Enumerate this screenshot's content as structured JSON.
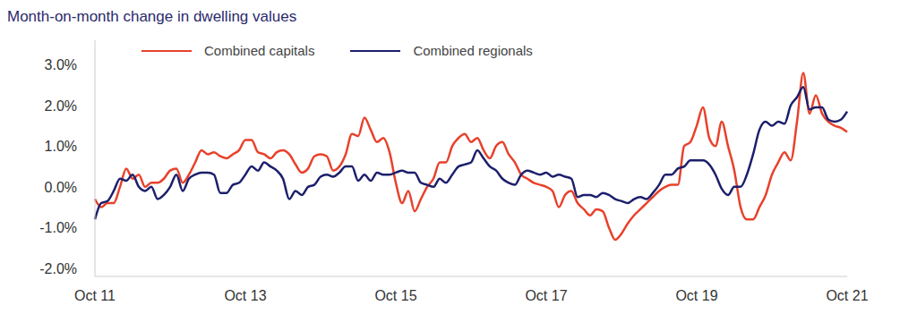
{
  "chart_data": {
    "type": "line",
    "title": "Month-on-month change in dwelling values",
    "categories": [
      "Oct 11",
      null,
      null,
      null,
      null,
      null,
      null,
      null,
      null,
      null,
      null,
      null,
      null,
      null,
      null,
      null,
      null,
      null,
      null,
      null,
      null,
      null,
      null,
      null,
      "Oct 13",
      null,
      null,
      null,
      null,
      null,
      null,
      null,
      null,
      null,
      null,
      null,
      null,
      null,
      null,
      null,
      null,
      null,
      null,
      null,
      null,
      null,
      null,
      null,
      "Oct 15",
      null,
      null,
      null,
      null,
      null,
      null,
      null,
      null,
      null,
      null,
      null,
      null,
      null,
      null,
      null,
      null,
      null,
      null,
      null,
      null,
      null,
      null,
      null,
      "Oct 17",
      null,
      null,
      null,
      null,
      null,
      null,
      null,
      null,
      null,
      null,
      null,
      null,
      null,
      null,
      null,
      null,
      null,
      null,
      null,
      null,
      null,
      null,
      null,
      "Oct 19",
      null,
      null,
      null,
      null,
      null,
      null,
      null,
      null,
      null,
      null,
      null,
      null,
      null,
      null,
      null,
      null,
      null,
      null,
      null,
      null,
      null,
      null,
      null,
      "Oct 21"
    ],
    "series": [
      {
        "name": "Combined capitals",
        "color": "#e8412b",
        "values": [
          -0.3,
          -0.5,
          -0.4,
          -0.4,
          0.0,
          0.45,
          0.2,
          0.3,
          0.0,
          0.1,
          0.1,
          0.2,
          0.4,
          0.45,
          0.1,
          0.3,
          0.6,
          0.9,
          0.8,
          0.85,
          0.75,
          0.7,
          0.8,
          0.9,
          1.15,
          1.15,
          0.85,
          0.8,
          0.7,
          0.85,
          0.9,
          0.8,
          0.55,
          0.35,
          0.45,
          0.75,
          0.8,
          0.75,
          0.4,
          0.5,
          0.8,
          1.3,
          1.25,
          1.7,
          1.4,
          1.1,
          1.2,
          0.85,
          0.1,
          -0.4,
          -0.1,
          -0.6,
          -0.3,
          0.0,
          0.2,
          0.6,
          0.6,
          1.0,
          1.2,
          1.3,
          1.1,
          1.2,
          0.9,
          0.7,
          1.0,
          1.1,
          0.8,
          0.6,
          0.3,
          0.2,
          0.1,
          0.05,
          0.0,
          -0.1,
          -0.5,
          -0.2,
          -0.1,
          -0.4,
          -0.55,
          -0.7,
          -0.55,
          -0.6,
          -1.0,
          -1.3,
          -1.15,
          -0.9,
          -0.7,
          -0.55,
          -0.4,
          -0.25,
          -0.1,
          0.0,
          0.05,
          0.05,
          1.0,
          1.1,
          1.5,
          1.95,
          1.2,
          1.0,
          1.6,
          1.0,
          0.4,
          -0.5,
          -0.8,
          -0.8,
          -0.5,
          -0.2,
          0.3,
          0.6,
          0.85,
          0.65,
          1.6,
          2.8,
          1.8,
          2.25,
          1.8,
          1.6,
          1.5,
          1.45,
          1.35
        ]
      },
      {
        "name": "Combined regionals",
        "color": "#1c1f6b",
        "values": [
          -0.8,
          -0.4,
          -0.35,
          -0.1,
          0.2,
          0.15,
          0.3,
          0.0,
          -0.1,
          0.0,
          -0.3,
          -0.2,
          0.0,
          0.3,
          -0.1,
          0.2,
          0.3,
          0.35,
          0.35,
          0.3,
          -0.15,
          -0.15,
          0.05,
          0.1,
          0.3,
          0.5,
          0.4,
          0.6,
          0.5,
          0.4,
          0.2,
          -0.3,
          -0.1,
          -0.2,
          0.0,
          0.05,
          0.25,
          0.3,
          0.25,
          0.35,
          0.5,
          0.5,
          0.15,
          0.3,
          0.15,
          0.35,
          0.3,
          0.3,
          0.35,
          0.4,
          0.35,
          0.35,
          0.1,
          0.05,
          0.0,
          0.2,
          0.1,
          0.3,
          0.5,
          0.55,
          0.6,
          0.9,
          0.7,
          0.5,
          0.4,
          0.2,
          0.1,
          0.05,
          0.3,
          0.4,
          0.35,
          0.3,
          0.35,
          0.25,
          0.3,
          0.25,
          0.2,
          -0.25,
          -0.2,
          -0.2,
          -0.25,
          -0.15,
          -0.2,
          -0.3,
          -0.35,
          -0.4,
          -0.3,
          -0.25,
          -0.3,
          -0.15,
          0.05,
          0.3,
          0.3,
          0.45,
          0.5,
          0.65,
          0.65,
          0.65,
          0.55,
          0.3,
          -0.05,
          -0.2,
          0.0,
          0.0,
          0.3,
          0.8,
          1.4,
          1.6,
          1.5,
          1.6,
          1.55,
          2.0,
          2.2,
          2.45,
          1.9,
          1.95,
          1.95,
          1.65,
          1.6,
          1.65,
          1.85
        ]
      }
    ],
    "ylim": [
      -2.2,
      3.6
    ],
    "yticks": [
      {
        "value": -2,
        "label": "-2.0%"
      },
      {
        "value": -1,
        "label": "-1.0%"
      },
      {
        "value": 0,
        "label": "0.0%"
      },
      {
        "value": 1,
        "label": "1.0%"
      },
      {
        "value": 2,
        "label": "2.0%"
      },
      {
        "value": 3,
        "label": "3.0%"
      }
    ],
    "grid": false,
    "legend": "upper left"
  }
}
